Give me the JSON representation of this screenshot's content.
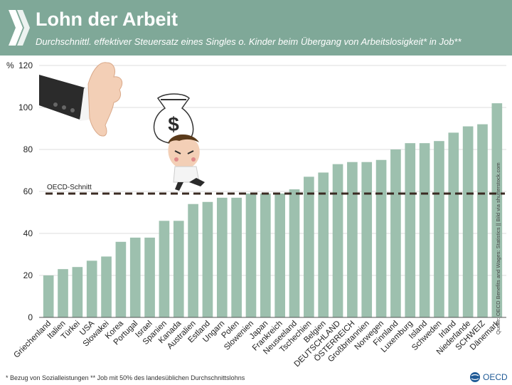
{
  "header": {
    "title": "Lohn der Arbeit",
    "subtitle": "Durchschnittl. effektiver Steuersatz eines Singles o. Kinder beim Übergang von Arbeitslosigkeit* in Job**"
  },
  "source": "Quelle: OECD Benefits and Wages: Statistics || Bild via shutterstock.com",
  "footnote": "* Bezug von Sozialleistungen   ** Job mit 50% des landesüblichen Durchschnittslohns",
  "brand": {
    "logo_text": "OECD"
  },
  "colors": {
    "header": "#7fa898",
    "bar": "#9dc0ae",
    "avg_line": "#3a2a22",
    "grid": "#dddddd"
  },
  "illustration": {
    "bag_symbol": "$"
  },
  "chart_data": {
    "type": "bar",
    "y_unit": "%",
    "ylim": [
      0,
      120
    ],
    "yticks": [
      0,
      20,
      40,
      60,
      80,
      100,
      120
    ],
    "grid": true,
    "categories": [
      "Griechenland",
      "Italien",
      "Türkei",
      "USA",
      "Slowakei",
      "Korea",
      "Portugal",
      "Israel",
      "Spanien",
      "Kanada",
      "Australien",
      "Estland",
      "Ungarn",
      "Polen",
      "Slowenien",
      "Japan",
      "Frankreich",
      "Neuseeland",
      "Tschechien",
      "Belgien",
      "DEUTSCHLAND",
      "ÖSTERREICH",
      "Großbritannien",
      "Norwegen",
      "Finnland",
      "Luxemburg",
      "Island",
      "Schweden",
      "Irland",
      "Niederlande",
      "SCHWEIZ",
      "Dänemark"
    ],
    "values": [
      20,
      23,
      24,
      27,
      29,
      36,
      38,
      38,
      46,
      46,
      54,
      55,
      57,
      57,
      59,
      59,
      59,
      61,
      67,
      69,
      73,
      74,
      74,
      75,
      80,
      83,
      83,
      84,
      88,
      91,
      92,
      102
    ],
    "reference_line": {
      "label": "OECD-Schnitt",
      "value": 59
    }
  }
}
